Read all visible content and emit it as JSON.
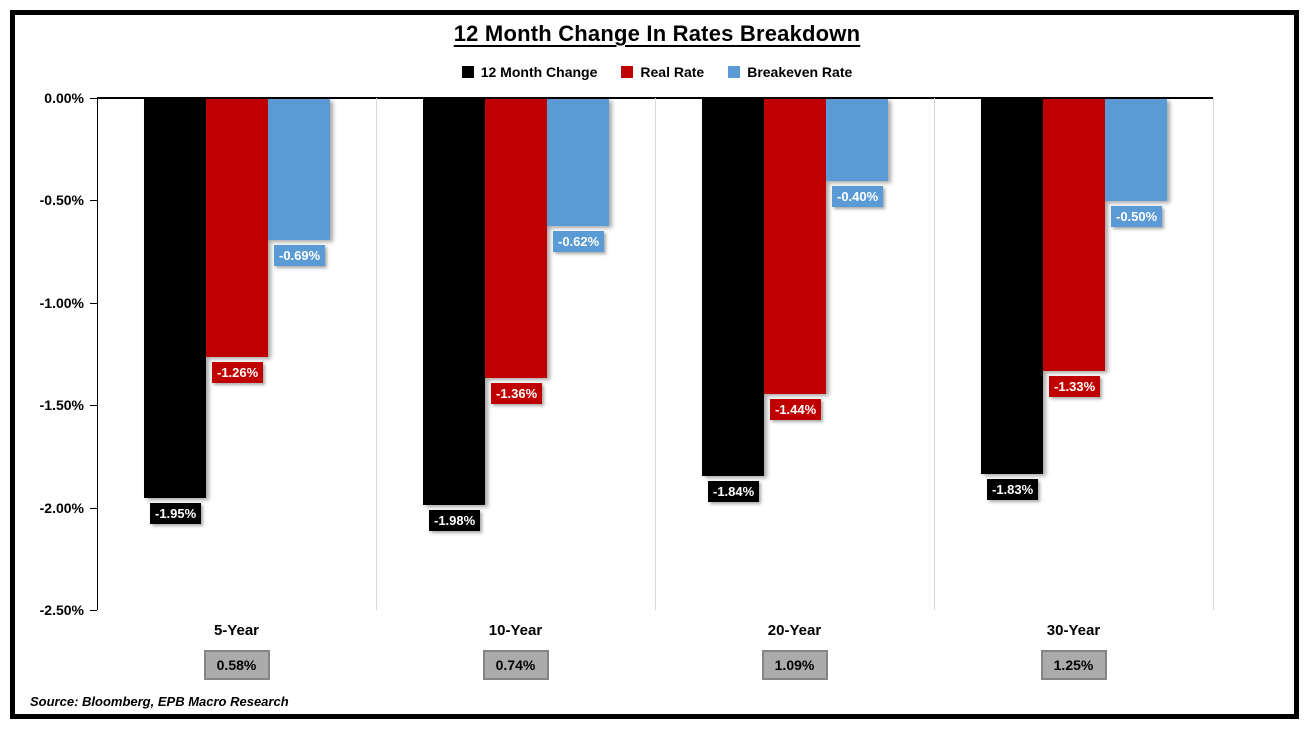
{
  "title": "12 Month Change In Rates Breakdown",
  "source": "Source: Bloomberg, EPB Macro Research",
  "chart_data": {
    "type": "bar",
    "title": "12 Month Change In Rates Breakdown",
    "categories": [
      "5-Year",
      "10-Year",
      "20-Year",
      "30-Year"
    ],
    "series": [
      {
        "name": "12 Month Change",
        "color": "#000000",
        "values": [
          -1.95,
          -1.98,
          -1.84,
          -1.83
        ],
        "labels": [
          "-1.95%",
          "-1.98%",
          "-1.84%",
          "-1.83%"
        ]
      },
      {
        "name": "Real Rate",
        "color": "#c00000",
        "values": [
          -1.26,
          -1.36,
          -1.44,
          -1.33
        ],
        "labels": [
          "-1.26%",
          "-1.36%",
          "-1.44%",
          "-1.33%"
        ]
      },
      {
        "name": "Breakeven Rate",
        "color": "#5b9bd5",
        "values": [
          -0.69,
          -0.62,
          -0.4,
          -0.5
        ],
        "labels": [
          "-0.69%",
          "-0.62%",
          "-0.40%",
          "-0.50%"
        ]
      }
    ],
    "category_footer_values": [
      "0.58%",
      "0.74%",
      "1.09%",
      "1.25%"
    ],
    "y_axis": {
      "min": -2.5,
      "max": 0,
      "tick_labels": [
        "0.00%",
        "-0.50%",
        "-1.00%",
        "-1.50%",
        "-2.00%",
        "-2.50%"
      ]
    },
    "legend_position": "top",
    "grid": "vertical-category-separators",
    "separator_color": "#d9d9d9",
    "footer_box_fill": "#ababab",
    "footer_box_border": "#858585"
  }
}
